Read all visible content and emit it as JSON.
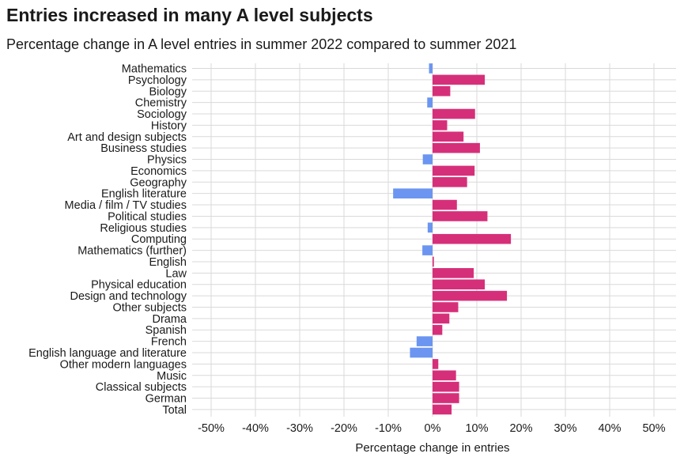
{
  "chart_data": {
    "type": "bar",
    "orientation": "horizontal",
    "title": "Entries increased in many A level subjects",
    "subtitle": "Percentage change in A level entries in summer 2022 compared to summer 2021",
    "xlabel": "Percentage change in entries",
    "xlim": [
      -50,
      50
    ],
    "x_ticks": [
      "-50%",
      "-40%",
      "-30%",
      "-20%",
      "-10%",
      "0%",
      "10%",
      "20%",
      "30%",
      "40%",
      "50%"
    ],
    "grid": true,
    "colors": {
      "positive": "#d62f7a",
      "negative": "#6b95f0",
      "grid": "#d9d9d9"
    },
    "categories": [
      "Mathematics",
      "Psychology",
      "Biology",
      "Chemistry",
      "Sociology",
      "History",
      "Art and design subjects",
      "Business studies",
      "Physics",
      "Economics",
      "Geography",
      "English literature",
      "Media / film / TV studies",
      "Political studies",
      "Religious studies",
      "Computing",
      "Mathematics (further)",
      "English",
      "Law",
      "Physical education",
      "Design and technology",
      "Other subjects",
      "Drama",
      "Spanish",
      "French",
      "English language and literature",
      "Other modern languages",
      "Music",
      "Classical subjects",
      "German",
      "Total"
    ],
    "values": [
      -0.8,
      11.8,
      4.0,
      -1.2,
      9.6,
      3.3,
      7.0,
      10.7,
      -2.2,
      9.5,
      7.8,
      -8.9,
      5.5,
      12.4,
      -1.1,
      17.7,
      -2.3,
      0.3,
      9.3,
      11.8,
      16.8,
      5.8,
      3.8,
      2.2,
      -3.6,
      -5.1,
      1.3,
      5.3,
      6.0,
      6.0,
      4.3
    ]
  }
}
